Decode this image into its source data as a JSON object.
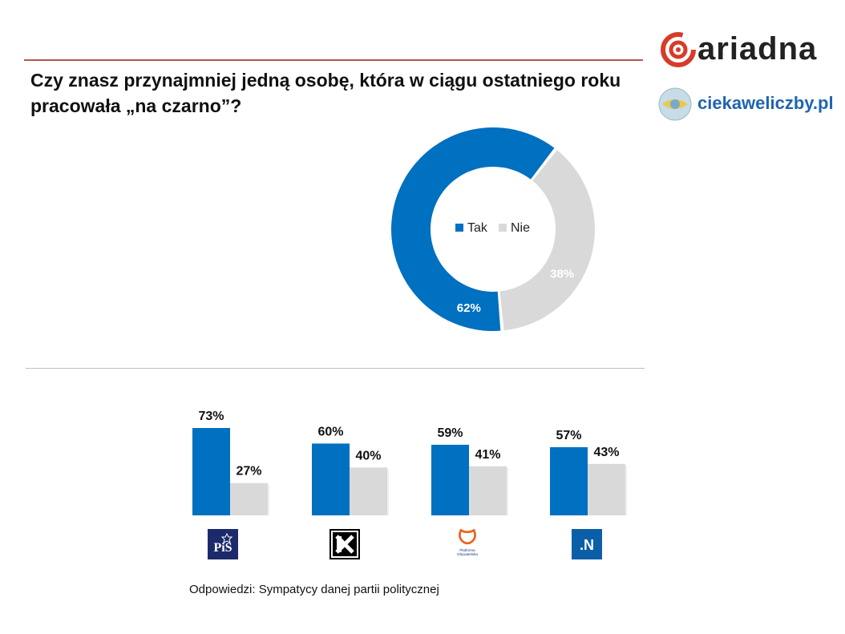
{
  "title": "Czy znasz przynajmniej jedną osobę, która w ciągu ostatniego roku pracowała „na czarno”?",
  "logos": {
    "ariadna": "ariadna",
    "ciekawe": "ciekaweliczby.pl",
    "brand_red": "#d73b2a",
    "brand_blue": "#1f64b0"
  },
  "chart_data": [
    {
      "type": "pie",
      "variant": "donut",
      "categories": [
        "Tak",
        "Nie"
      ],
      "values": [
        62,
        38
      ],
      "labels": [
        "62%",
        "38%"
      ],
      "colors": [
        "#0070c0",
        "#d9d9d9"
      ],
      "legend": "center"
    },
    {
      "type": "bar",
      "categories": [
        "PiS",
        "Kukiz'15",
        "Platforma Obywatelska",
        ".N"
      ],
      "series": [
        {
          "name": "Tak",
          "values": [
            73,
            60,
            59,
            57
          ],
          "labels": [
            "73%",
            "60%",
            "59%",
            "57%"
          ],
          "color": "#0070c0"
        },
        {
          "name": "Nie",
          "values": [
            27,
            40,
            41,
            43
          ],
          "labels": [
            "27%",
            "40%",
            "41%",
            "43%"
          ],
          "color": "#d9d9d9"
        }
      ],
      "ylim": [
        0,
        100
      ]
    }
  ],
  "party_logos": [
    "PiS",
    "K",
    "Platforma Obywatelska",
    ".N"
  ],
  "footnote": "Odpowiedzi: Sympatycy danej partii politycznej"
}
